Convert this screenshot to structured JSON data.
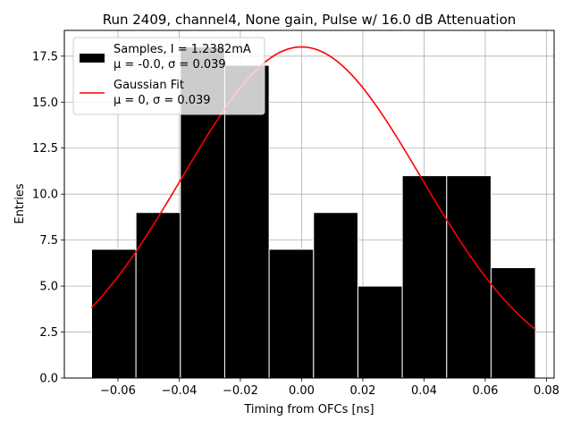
{
  "chart_data": {
    "type": "bar",
    "title": "Run 2409, channel4, None gain, Pulse w/ 16.0 dB Attenuation",
    "xlabel": "Timing from OFCs [ns]",
    "ylabel": "Entries",
    "xlim": [
      -0.0775,
      0.0825
    ],
    "ylim": [
      0,
      18.9
    ],
    "grid": true,
    "legend_position": "top-left",
    "xticks": [
      -0.06,
      -0.04,
      -0.02,
      0.0,
      0.02,
      0.04,
      0.06,
      0.08
    ],
    "xtick_labels": [
      "−0.06",
      "−0.04",
      "−0.02",
      "0.00",
      "0.02",
      "0.04",
      "0.06",
      "0.08"
    ],
    "yticks": [
      0,
      2.5,
      5,
      7.5,
      10,
      12.5,
      15,
      17.5
    ],
    "ytick_labels": [
      "0.0",
      "2.5",
      "5.0",
      "7.5",
      "10.0",
      "12.5",
      "15.0",
      "17.5"
    ],
    "histogram": {
      "name_line1": "Samples, I = 1.2382mA",
      "name_line2": "μ = -0.0, σ = 0.039",
      "color": "#000000",
      "edge_color": "#ffffff",
      "bin_edges": [
        -0.0686,
        -0.0541,
        -0.0396,
        -0.0251,
        -0.0106,
        0.0039,
        0.0184,
        0.0329,
        0.0474,
        0.0619,
        0.0764
      ],
      "counts": [
        7,
        9,
        18,
        17,
        7,
        9,
        5,
        11,
        11,
        6
      ]
    },
    "fit": {
      "name_line1": "Gaussian Fit",
      "name_line2": "μ = 0, σ = 0.039",
      "color": "#ff0000",
      "amplitude": 18,
      "mu": 0,
      "sigma": 0.039,
      "x_range": [
        -0.0686,
        0.0764
      ]
    }
  }
}
